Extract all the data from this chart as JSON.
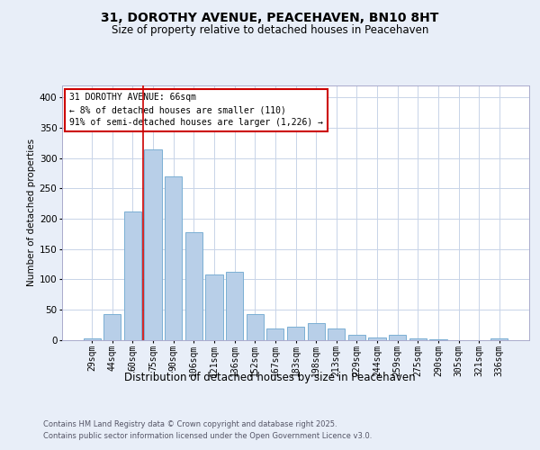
{
  "title": "31, DOROTHY AVENUE, PEACEHAVEN, BN10 8HT",
  "subtitle": "Size of property relative to detached houses in Peacehaven",
  "xlabel": "Distribution of detached houses by size in Peacehaven",
  "ylabel": "Number of detached properties",
  "bar_labels": [
    "29sqm",
    "44sqm",
    "60sqm",
    "75sqm",
    "90sqm",
    "106sqm",
    "121sqm",
    "136sqm",
    "152sqm",
    "167sqm",
    "183sqm",
    "198sqm",
    "213sqm",
    "229sqm",
    "244sqm",
    "259sqm",
    "275sqm",
    "290sqm",
    "305sqm",
    "321sqm",
    "336sqm"
  ],
  "bar_values": [
    2,
    42,
    212,
    315,
    270,
    178,
    108,
    112,
    42,
    18,
    22,
    28,
    18,
    8,
    3,
    8,
    2,
    1,
    0,
    0,
    2
  ],
  "bar_color": "#b8cfe8",
  "bar_edge_color": "#7aafd4",
  "vline_color": "#cc0000",
  "annotation_text": "31 DOROTHY AVENUE: 66sqm\n← 8% of detached houses are smaller (110)\n91% of semi-detached houses are larger (1,226) →",
  "annotation_box_color": "#ffffff",
  "annotation_box_edge": "#cc0000",
  "ylim": [
    0,
    420
  ],
  "yticks": [
    0,
    50,
    100,
    150,
    200,
    250,
    300,
    350,
    400
  ],
  "footer_line1": "Contains HM Land Registry data © Crown copyright and database right 2025.",
  "footer_line2": "Contains public sector information licensed under the Open Government Licence v3.0.",
  "bg_color": "#e8eef8",
  "plot_bg_color": "#ffffff",
  "grid_color": "#c8d4e8",
  "title_fontsize": 10,
  "subtitle_fontsize": 8.5,
  "ylabel_fontsize": 7.5,
  "xlabel_fontsize": 8.5,
  "tick_fontsize": 7,
  "annot_fontsize": 7,
  "footer_fontsize": 6
}
